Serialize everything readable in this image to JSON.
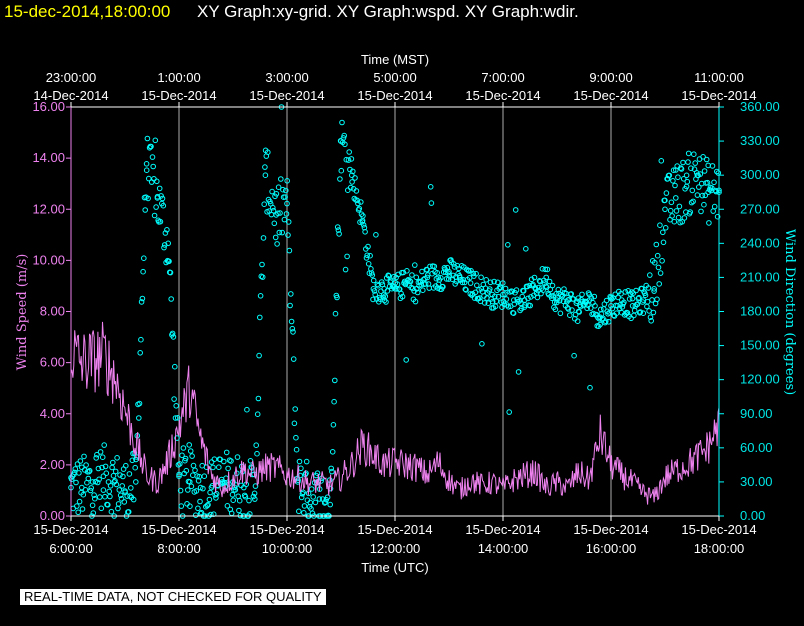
{
  "header": {
    "datetime": "15-dec-2014,18:00:00",
    "graphs": "XY Graph:xy-grid.  XY Graph:wspd.  XY Graph:wdir."
  },
  "footer": "REAL-TIME DATA, NOT CHECKED FOR QUALITY",
  "colors": {
    "wspd": "#ee82ee",
    "wdir": "#00ffff",
    "grid": "#ffffff",
    "header_date": "#ffff00"
  },
  "chart_data": {
    "type": "scatter",
    "top_axis_title": "Time (MST)",
    "bottom_axis_title": "Time (UTC)",
    "ylabel_left": "Wind Speed (m/s)",
    "ylabel_right": "Wind Direction (degrees)",
    "xlim_utc_hours": [
      6.0,
      18.0
    ],
    "ylim_left": [
      0,
      16
    ],
    "ylim_right": [
      0,
      360
    ],
    "grid": "vertical lines at every 2 hours",
    "top_ticks": [
      {
        "h": 6,
        "time": "23:00:00",
        "date": "14-Dec-2014"
      },
      {
        "h": 8,
        "time": "1:00:00",
        "date": "15-Dec-2014"
      },
      {
        "h": 10,
        "time": "3:00:00",
        "date": "15-Dec-2014"
      },
      {
        "h": 12,
        "time": "5:00:00",
        "date": "15-Dec-2014"
      },
      {
        "h": 14,
        "time": "7:00:00",
        "date": "15-Dec-2014"
      },
      {
        "h": 16,
        "time": "9:00:00",
        "date": "15-Dec-2014"
      },
      {
        "h": 18,
        "time": "11:00:00",
        "date": "15-Dec-2014"
      }
    ],
    "bottom_ticks": [
      {
        "h": 6,
        "date": "15-Dec-2014",
        "time": "6:00:00"
      },
      {
        "h": 8,
        "date": "15-Dec-2014",
        "time": "8:00:00"
      },
      {
        "h": 10,
        "date": "15-Dec-2014",
        "time": "10:00:00"
      },
      {
        "h": 12,
        "date": "15-Dec-2014",
        "time": "12:00:00"
      },
      {
        "h": 14,
        "date": "15-Dec-2014",
        "time": "14:00:00"
      },
      {
        "h": 16,
        "date": "15-Dec-2014",
        "time": "16:00:00"
      },
      {
        "h": 18,
        "date": "15-Dec-2014",
        "time": "18:00:00"
      }
    ],
    "left_ticks": [
      "0.00",
      "2.00",
      "4.00",
      "6.00",
      "8.00",
      "10.00",
      "12.00",
      "14.00",
      "16.00"
    ],
    "right_ticks": [
      "0.00",
      "30.00",
      "60.00",
      "90.00",
      "120.00",
      "150.00",
      "180.00",
      "210.00",
      "240.00",
      "270.00",
      "300.00",
      "330.00",
      "360.00"
    ],
    "series": [
      {
        "name": "wspd",
        "style": "line",
        "x": [
          6.0,
          6.2,
          6.4,
          6.6,
          6.8,
          7.0,
          7.2,
          7.4,
          7.6,
          7.8,
          8.0,
          8.2,
          8.4,
          8.6,
          8.8,
          9.0,
          9.2,
          9.4,
          9.6,
          9.8,
          10.0,
          10.2,
          10.4,
          10.6,
          10.8,
          11.0,
          11.2,
          11.4,
          11.6,
          11.8,
          12.0,
          12.2,
          12.4,
          12.6,
          12.8,
          13.0,
          13.2,
          13.4,
          13.6,
          13.8,
          14.0,
          14.2,
          14.4,
          14.6,
          14.8,
          15.0,
          15.2,
          15.4,
          15.6,
          15.8,
          16.0,
          16.2,
          16.4,
          16.6,
          16.8,
          17.0,
          17.2,
          17.4,
          17.6,
          17.8,
          18.0
        ],
        "values": [
          6.5,
          6.0,
          6.1,
          6.3,
          5.5,
          4.2,
          2.8,
          1.6,
          1.3,
          2.2,
          3.5,
          5.0,
          3.0,
          1.6,
          1.1,
          1.5,
          1.8,
          1.6,
          1.9,
          1.9,
          1.6,
          1.5,
          1.3,
          1.3,
          1.2,
          1.5,
          2.0,
          2.8,
          2.4,
          2.0,
          2.1,
          2.0,
          1.9,
          1.6,
          2.1,
          1.4,
          1.0,
          1.4,
          1.2,
          1.3,
          1.1,
          1.4,
          1.6,
          1.7,
          1.1,
          1.3,
          1.1,
          1.7,
          1.4,
          3.2,
          2.0,
          1.6,
          1.3,
          0.9,
          0.7,
          1.5,
          1.8,
          2.0,
          2.3,
          2.7,
          3.6
        ]
      },
      {
        "name": "wdir",
        "style": "scatter",
        "x": [
          6.0,
          6.2,
          6.4,
          6.6,
          6.8,
          7.0,
          7.2,
          7.4,
          7.6,
          7.8,
          8.0,
          8.2,
          8.4,
          8.6,
          8.8,
          9.0,
          9.2,
          9.4,
          9.6,
          9.8,
          10.0,
          10.2,
          10.4,
          10.6,
          10.8,
          11.0,
          11.2,
          11.4,
          11.6,
          11.8,
          12.0,
          12.2,
          12.4,
          12.6,
          12.8,
          13.0,
          13.2,
          13.4,
          13.6,
          13.8,
          14.0,
          14.2,
          14.4,
          14.6,
          14.8,
          15.0,
          15.2,
          15.4,
          15.6,
          15.8,
          16.0,
          16.2,
          16.4,
          16.6,
          16.8,
          17.0,
          17.2,
          17.4,
          17.6,
          17.8,
          18.0
        ],
        "values": [
          25,
          25,
          30,
          35,
          30,
          22,
          30,
          310,
          280,
          240,
          35,
          30,
          25,
          25,
          30,
          30,
          25,
          20,
          300,
          265,
          275,
          30,
          20,
          15,
          10,
          330,
          300,
          260,
          200,
          200,
          200,
          205,
          200,
          210,
          210,
          215,
          210,
          205,
          200,
          195,
          195,
          190,
          190,
          200,
          210,
          190,
          190,
          180,
          190,
          175,
          185,
          190,
          185,
          190,
          200,
          270,
          280,
          290,
          300,
          285,
          285
        ]
      }
    ]
  }
}
